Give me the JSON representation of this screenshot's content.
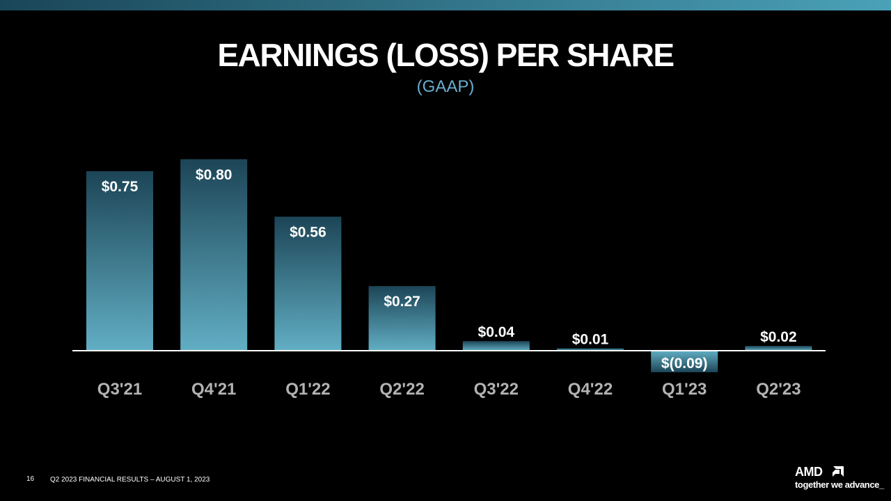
{
  "slide": {
    "title": "EARNINGS (LOSS) PER SHARE",
    "subtitle": "(GAAP)",
    "page_number": "16",
    "footer": "Q2 2023 FINANCIAL RESULTS – AUGUST 1, 2023",
    "logo": {
      "word": "AMD",
      "tagline": "together we advance_"
    }
  },
  "colors": {
    "background": "#000000",
    "bar_light": "#62aec4",
    "bar_dark": "#1c4556",
    "subtitle": "#6aaed0",
    "axis_label": "#b3b3b3",
    "value_label": "#ffffff",
    "top_band_left": "#1a4658",
    "top_band_right": "#4aa1b8"
  },
  "chart_data": {
    "type": "bar",
    "title": "EARNINGS (LOSS) PER SHARE",
    "subtitle": "(GAAP)",
    "categories": [
      "Q3'21",
      "Q4'21",
      "Q1'22",
      "Q2'22",
      "Q3'22",
      "Q4'22",
      "Q1'23",
      "Q2'23"
    ],
    "values": [
      0.75,
      0.8,
      0.56,
      0.27,
      0.04,
      0.01,
      -0.09,
      0.02
    ],
    "data_labels": [
      "$0.75",
      "$0.80",
      "$0.56",
      "$0.27",
      "$0.04",
      "$0.01",
      "$(0.09)",
      "$0.02"
    ],
    "xlabel": "",
    "ylabel": "",
    "ylim": [
      -0.09,
      0.8
    ],
    "grid": false,
    "legend": "none",
    "baseline": 0
  }
}
